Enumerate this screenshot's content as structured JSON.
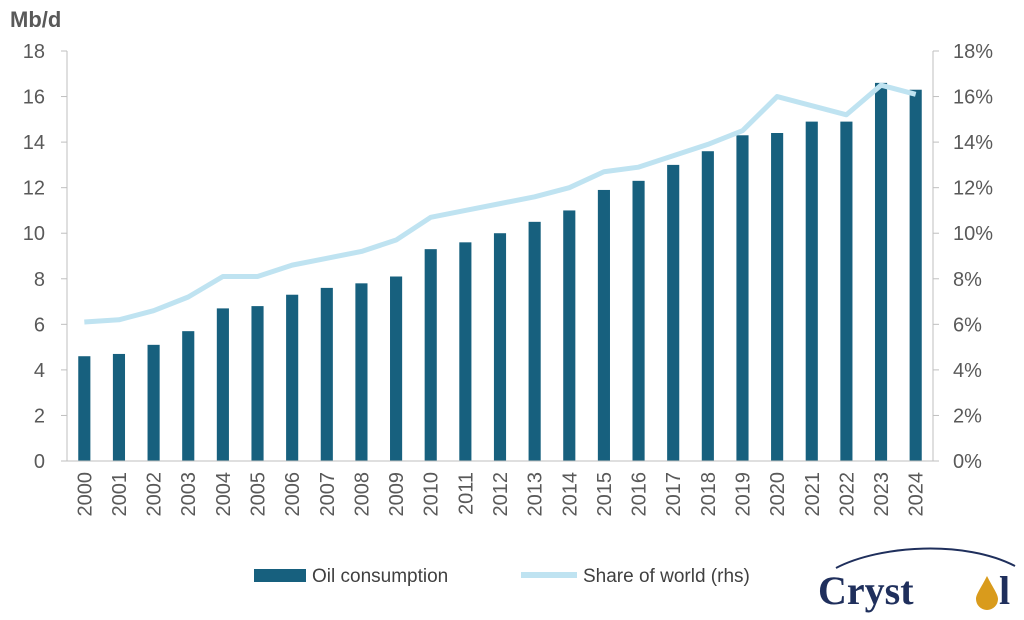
{
  "chart_data": {
    "type": "bar",
    "categories": [
      "2000",
      "2001",
      "2002",
      "2003",
      "2004",
      "2005",
      "2006",
      "2007",
      "2008",
      "2009",
      "2010",
      "2011",
      "2012",
      "2013",
      "2014",
      "2015",
      "2016",
      "2017",
      "2018",
      "2019",
      "2020",
      "2021",
      "2022",
      "2023",
      "2024"
    ],
    "series": [
      {
        "name": "Oil consumption",
        "type": "bar",
        "axis": "left",
        "color": "#17607e",
        "values": [
          4.6,
          4.7,
          5.1,
          5.7,
          6.7,
          6.8,
          7.3,
          7.6,
          7.8,
          8.1,
          9.3,
          9.6,
          10.0,
          10.5,
          11.0,
          11.9,
          12.3,
          13.0,
          13.6,
          14.3,
          14.4,
          14.9,
          14.9,
          16.6,
          16.3
        ]
      },
      {
        "name": "Share of world (rhs)",
        "type": "line",
        "axis": "right",
        "color": "#bfe3f1",
        "values": [
          6.1,
          6.2,
          6.6,
          7.2,
          8.1,
          8.1,
          8.6,
          8.9,
          9.2,
          9.7,
          10.7,
          11.0,
          11.3,
          11.6,
          12.0,
          12.7,
          12.9,
          13.4,
          13.9,
          14.5,
          16.0,
          15.6,
          15.2,
          16.5,
          16.1
        ]
      }
    ],
    "ylabel": "Mb/d",
    "ylim": [
      0,
      18
    ],
    "yticks": [
      "0",
      "2",
      "4",
      "6",
      "8",
      "10",
      "12",
      "14",
      "16",
      "18"
    ],
    "y2lim": [
      0,
      18
    ],
    "y2ticks": [
      "0%",
      "2%",
      "4%",
      "6%",
      "8%",
      "10%",
      "12%",
      "14%",
      "16%",
      "18%"
    ],
    "legend_position": "bottom",
    "grid": false
  },
  "logo": {
    "text": "Crystol"
  }
}
